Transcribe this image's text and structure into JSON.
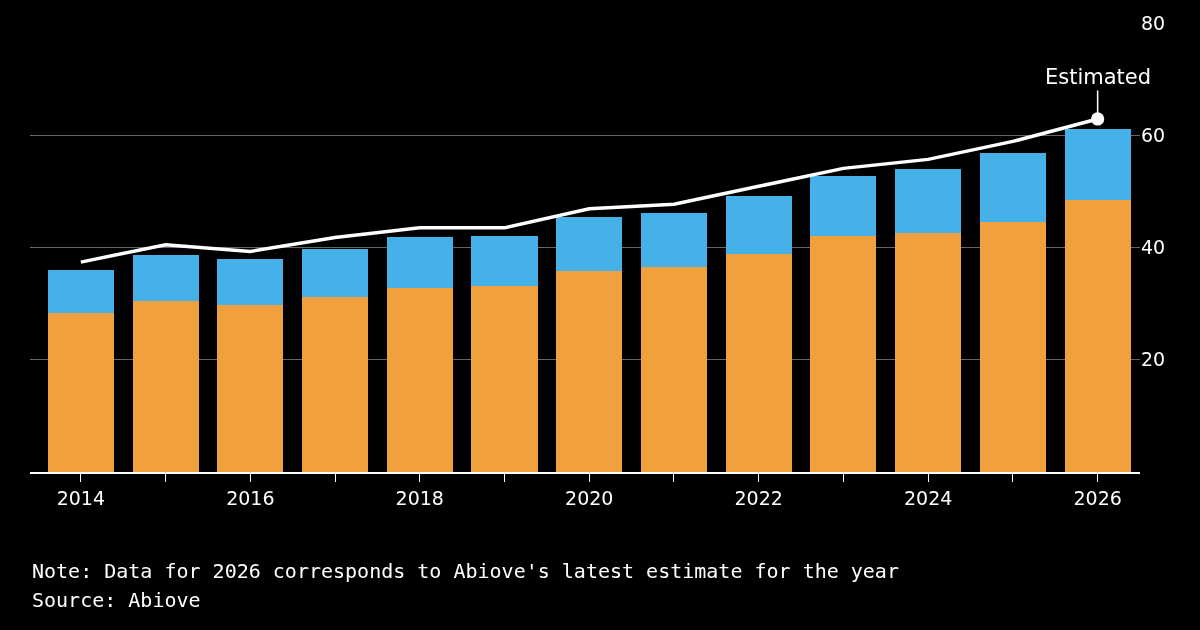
{
  "chart_data": {
    "type": "bar",
    "stacked": true,
    "categories": [
      "2014",
      null,
      "2016",
      null,
      "2018",
      null,
      "2020",
      null,
      "2022",
      null,
      "2024",
      null,
      "2026"
    ],
    "series": [
      {
        "color": "#f0a03c",
        "values": [
          28.4,
          30.5,
          29.8,
          31.2,
          32.8,
          33.1,
          35.8,
          36.5,
          38.9,
          42.1,
          42.5,
          44.6,
          48.5
        ]
      },
      {
        "color": "#45b1e8",
        "values": [
          7.6,
          8.1,
          8.1,
          8.6,
          9.0,
          9.0,
          9.7,
          9.7,
          10.2,
          10.7,
          11.5,
          12.2,
          12.7
        ]
      },
      {
        "type": "line",
        "color": "#ffffff",
        "marker": "none",
        "line_style": "solid",
        "values": [
          37.4,
          40.5,
          39.3,
          41.8,
          43.5,
          43.5,
          46.9,
          47.7,
          50.9,
          54.1,
          55.7,
          58.9,
          62.9
        ]
      }
    ],
    "ylim": [
      0,
      80
    ],
    "yticks": [
      20,
      40,
      60,
      80
    ],
    "grid": "y",
    "annotations": [
      {
        "text": "Estimated",
        "x": "2026",
        "y": 62.9
      },
      "Note: Data for 2026 corresponds to Abiove's latest estimate for the year",
      "Source: Abiove"
    ]
  }
}
